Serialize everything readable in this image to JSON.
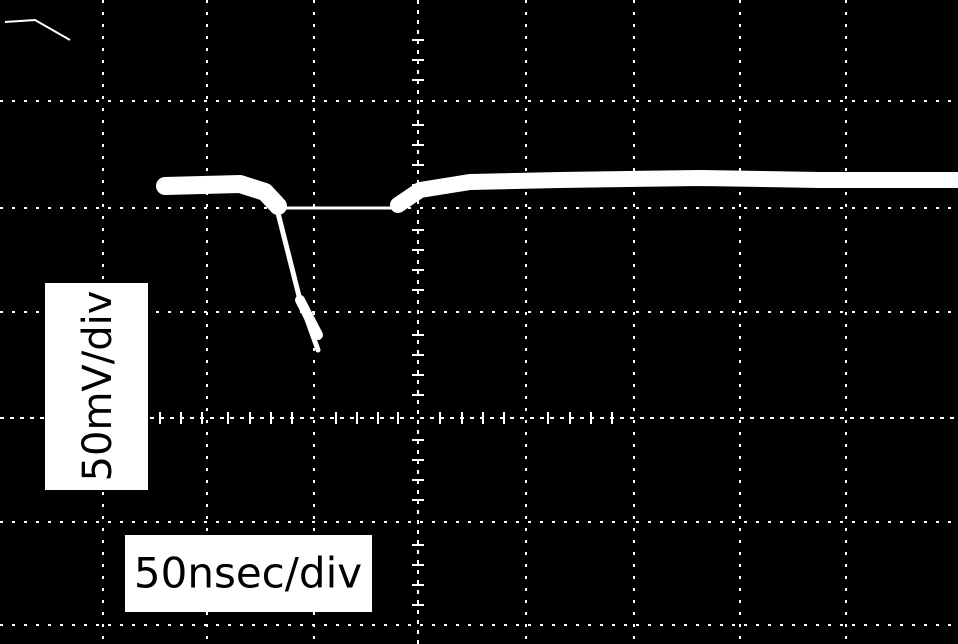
{
  "labels": {
    "vertical_scale": "50mV/div",
    "horizontal_scale": "50nsec/div"
  }
}
